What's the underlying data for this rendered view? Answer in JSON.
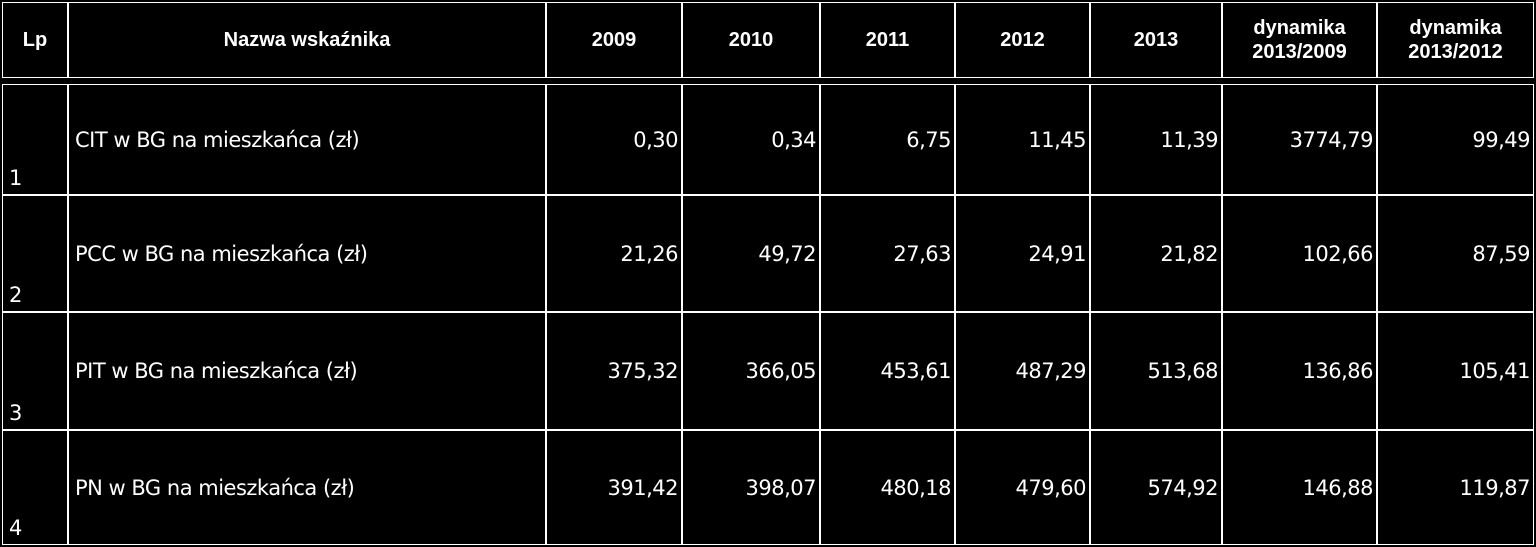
{
  "table": {
    "header": [
      "Lp",
      "Nazwa wskaźnika",
      "2009",
      "2010",
      "2011",
      "2012",
      "2013",
      "dynamika 2013/2009",
      "dynamika 2013/2012"
    ],
    "rows": [
      [
        "1",
        "CIT w BG na mieszkańca (zł)",
        "0,30",
        "0,34",
        "6,75",
        "11,45",
        "11,39",
        "3774,79",
        "99,49"
      ],
      [
        "2",
        "PCC w BG na mieszkańca (zł)",
        "21,26",
        "49,72",
        "27,63",
        "24,91",
        "21,82",
        "102,66",
        "87,59"
      ],
      [
        "3",
        "PIT w BG na mieszkańca (zł)",
        "375,32",
        "366,05",
        "453,61",
        "487,29",
        "513,68",
        "136,86",
        "105,41"
      ],
      [
        "4",
        "PN w BG na mieszkańca (zł)",
        "391,42",
        "398,07",
        "480,18",
        "479,60",
        "574,92",
        "146,88",
        "119,87"
      ]
    ]
  }
}
